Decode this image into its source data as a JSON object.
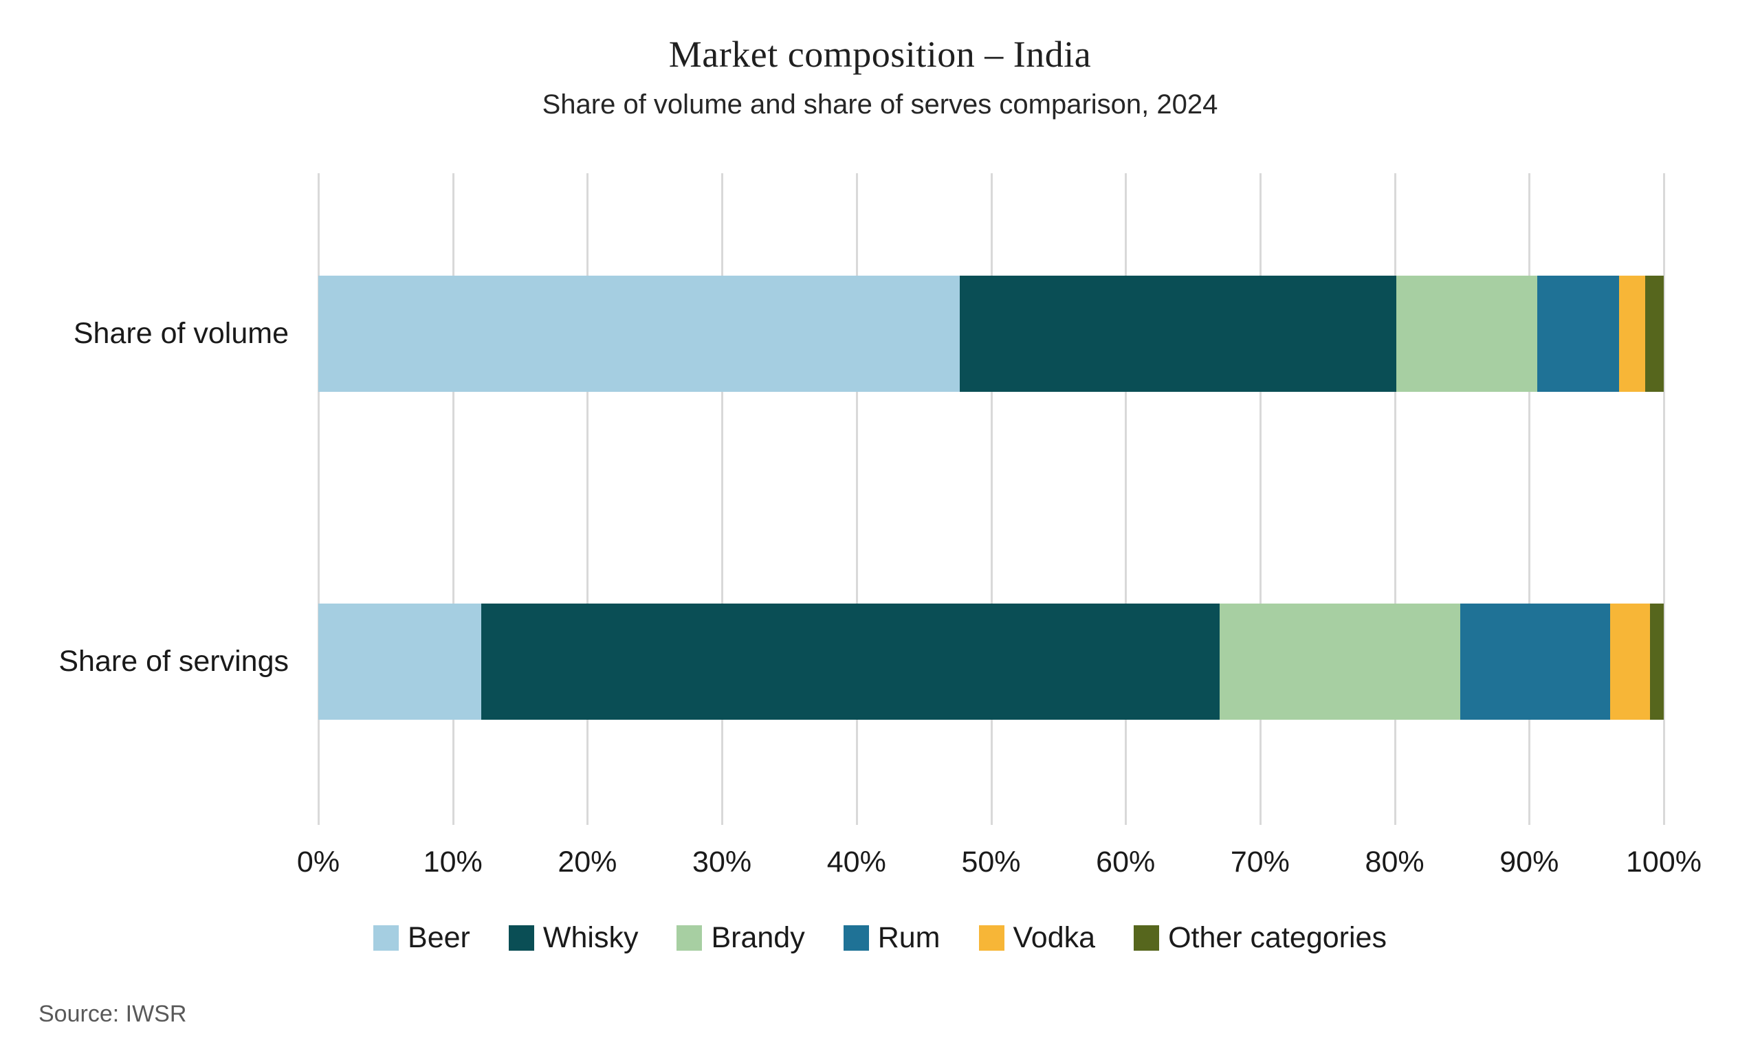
{
  "title": "Market composition – India",
  "subtitle": "Share of volume and share of serves comparison, 2024",
  "source": "Source: IWSR",
  "colors": {
    "background": "#ffffff",
    "gridline": "#d9d9d9",
    "title_text": "#1f1f1f",
    "body_text": "#1a1a1a",
    "source_text": "#595959"
  },
  "chart_data": {
    "type": "bar",
    "orientation": "horizontal",
    "stacked": true,
    "title": "Market composition – India",
    "subtitle": "Share of volume and share of serves comparison, 2024",
    "categories": [
      "Share of volume",
      "Share of servings"
    ],
    "series": [
      {
        "name": "Beer",
        "color": "#a5cee1",
        "values": [
          47.7,
          12.1
        ]
      },
      {
        "name": "Whisky",
        "color": "#0a4e55",
        "values": [
          32.4,
          54.9
        ]
      },
      {
        "name": "Brandy",
        "color": "#a7cfa2",
        "values": [
          10.5,
          17.9
        ]
      },
      {
        "name": "Rum",
        "color": "#1f7296",
        "values": [
          6.1,
          11.1
        ]
      },
      {
        "name": "Vodka",
        "color": "#f7b637",
        "values": [
          1.9,
          3.0
        ]
      },
      {
        "name": "Other categories",
        "color": "#56661d",
        "values": [
          1.4,
          1.0
        ]
      }
    ],
    "xlabel": "",
    "ylabel": "",
    "xlim": [
      0,
      100
    ],
    "xtick_labels": [
      "0%",
      "10%",
      "20%",
      "30%",
      "40%",
      "50%",
      "60%",
      "70%",
      "80%",
      "90%",
      "100%"
    ],
    "grid": true,
    "legend_position": "bottom",
    "source": "Source: IWSR"
  }
}
